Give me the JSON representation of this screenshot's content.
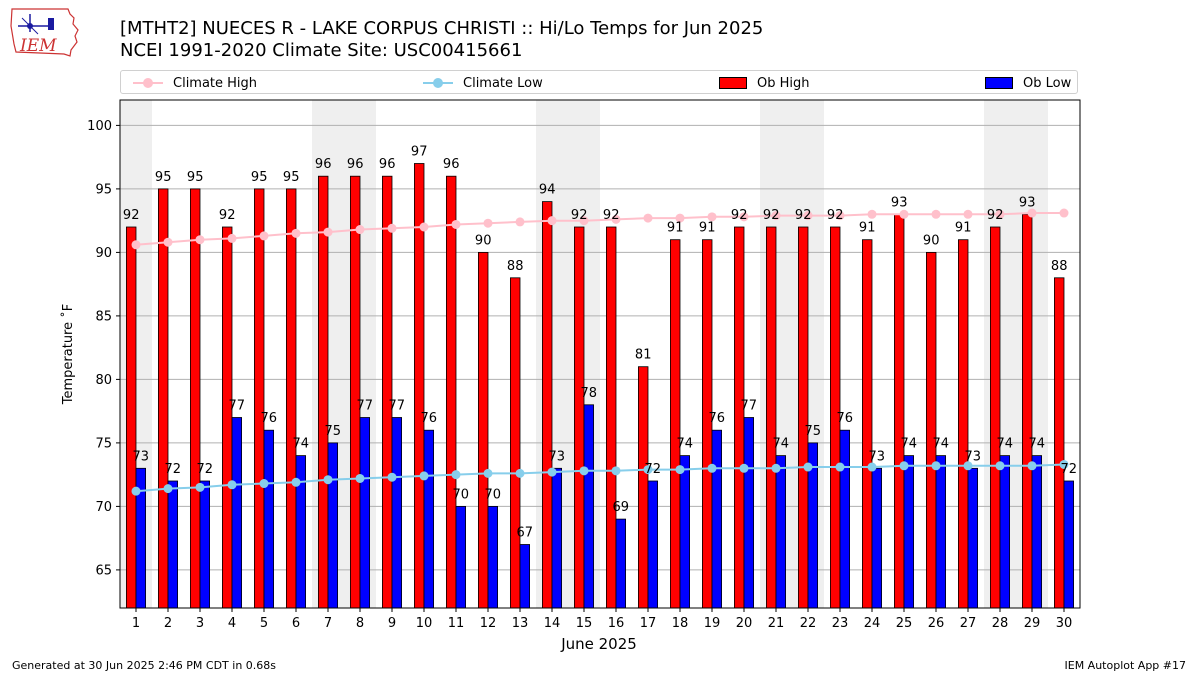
{
  "title": {
    "line1": "[MTHT2] NUECES R - LAKE CORPUS CHRISTI :: Hi/Lo Temps for Jun 2025",
    "line2": "NCEI 1991-2020 Climate Site: USC00415661"
  },
  "logo_text": "IEM",
  "footer": {
    "left": "Generated at 30 Jun 2025 2:46 PM CDT in 0.68s",
    "right": "IEM Autoplot App #17"
  },
  "colors": {
    "ob_high": "#ff0000",
    "ob_low": "#0000ff",
    "climate_high": "#ffc0cb",
    "climate_low": "#87ceeb",
    "weekend_band": "#efefef",
    "grid": "#b0b0b0"
  },
  "legend": [
    {
      "label": "Climate High",
      "kind": "line",
      "color": "#ffc0cb"
    },
    {
      "label": "Climate Low",
      "kind": "line",
      "color": "#87ceeb"
    },
    {
      "label": "Ob High",
      "kind": "box",
      "color": "#ff0000"
    },
    {
      "label": "Ob Low",
      "kind": "box",
      "color": "#0000ff"
    }
  ],
  "chart_data": {
    "type": "bar",
    "xlabel": "June 2025",
    "ylabel": "Temperature ˚F",
    "ylim": [
      62,
      102
    ],
    "yticks": [
      65,
      70,
      75,
      80,
      85,
      90,
      95,
      100
    ],
    "grid": "horizontal",
    "legend_placement": "top",
    "categories": [
      "1",
      "2",
      "3",
      "4",
      "5",
      "6",
      "7",
      "8",
      "9",
      "10",
      "11",
      "12",
      "13",
      "14",
      "15",
      "16",
      "17",
      "18",
      "19",
      "20",
      "21",
      "22",
      "23",
      "24",
      "25",
      "26",
      "27",
      "28",
      "29",
      "30"
    ],
    "shaded_days": [
      "1",
      "7",
      "8",
      "14",
      "15",
      "21",
      "22",
      "28",
      "29"
    ],
    "series": [
      {
        "name": "Ob High",
        "type": "bar",
        "values": [
          92,
          95,
          95,
          92,
          95,
          95,
          96,
          96,
          96,
          97,
          96,
          90,
          88,
          94,
          92,
          92,
          81,
          91,
          91,
          92,
          92,
          92,
          92,
          91,
          93,
          90,
          91,
          92,
          93,
          88
        ]
      },
      {
        "name": "Ob Low",
        "type": "bar",
        "values": [
          73,
          72,
          72,
          77,
          76,
          74,
          75,
          77,
          77,
          76,
          70,
          70,
          67,
          73,
          78,
          69,
          72,
          74,
          76,
          77,
          74,
          75,
          76,
          73,
          74,
          74,
          73,
          74,
          74,
          72
        ]
      },
      {
        "name": "Climate High",
        "type": "line",
        "values": [
          90.6,
          90.8,
          91.0,
          91.1,
          91.3,
          91.5,
          91.6,
          91.8,
          91.9,
          92.0,
          92.2,
          92.3,
          92.4,
          92.5,
          92.5,
          92.6,
          92.7,
          92.7,
          92.8,
          92.8,
          92.9,
          92.9,
          92.9,
          93.0,
          93.0,
          93.0,
          93.0,
          93.0,
          93.1,
          93.1
        ]
      },
      {
        "name": "Climate Low",
        "type": "line",
        "values": [
          71.2,
          71.4,
          71.5,
          71.7,
          71.8,
          71.9,
          72.1,
          72.2,
          72.3,
          72.4,
          72.5,
          72.6,
          72.6,
          72.7,
          72.8,
          72.8,
          72.9,
          72.9,
          73.0,
          73.0,
          73.0,
          73.1,
          73.1,
          73.1,
          73.2,
          73.2,
          73.2,
          73.2,
          73.2,
          73.3
        ]
      }
    ]
  }
}
